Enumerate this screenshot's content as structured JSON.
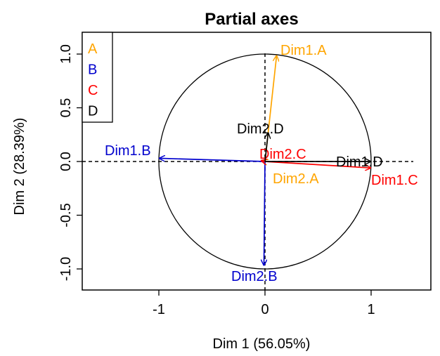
{
  "chart_data": {
    "type": "scatter",
    "title": "Partial axes",
    "xlabel": "Dim 1 (56.05%)",
    "ylabel": "Dim 2 (28.39%)",
    "xlim": [
      -1.7,
      1.55
    ],
    "ylim": [
      -1.18,
      1.18
    ],
    "x_ticks": [
      -1,
      0,
      1
    ],
    "x_tick_labels": [
      "-1",
      "0",
      "1"
    ],
    "y_ticks": [
      -1.0,
      -0.5,
      0.0,
      0.5,
      1.0
    ],
    "y_tick_labels": [
      "-1.0",
      "-0.5",
      "0.0",
      "0.5",
      "1.0"
    ],
    "unit_circle": true,
    "reference_lines": {
      "x": 0,
      "y": 0,
      "style": "dashed"
    },
    "legend": {
      "position": "top-left",
      "entries": [
        {
          "name": "A",
          "color": "#FFA500"
        },
        {
          "name": "B",
          "color": "#0000CD"
        },
        {
          "name": "C",
          "color": "#FF0000"
        },
        {
          "name": "D",
          "color": "#000000"
        }
      ]
    },
    "series": [
      {
        "name": "A",
        "color": "#FFA500",
        "arrows": [
          {
            "label": "Dim1.A",
            "x": 0.11,
            "y": 0.99
          },
          {
            "label": "Dim2.A",
            "x": -0.03,
            "y": 0.01
          }
        ]
      },
      {
        "name": "B",
        "color": "#0000CD",
        "arrows": [
          {
            "label": "Dim1.B",
            "x": -1.0,
            "y": 0.03
          },
          {
            "label": "Dim2.B",
            "x": -0.01,
            "y": -0.97
          }
        ]
      },
      {
        "name": "C",
        "color": "#FF0000",
        "arrows": [
          {
            "label": "Dim1.C",
            "x": 1.0,
            "y": -0.06
          },
          {
            "label": "Dim2.C",
            "x": -0.04,
            "y": 0.01
          }
        ]
      },
      {
        "name": "D",
        "color": "#000000",
        "arrows": [
          {
            "label": "Dim1.D",
            "x": 1.0,
            "y": 0.0
          },
          {
            "label": "Dim2.D",
            "x": 0.03,
            "y": 0.27
          }
        ]
      }
    ]
  }
}
